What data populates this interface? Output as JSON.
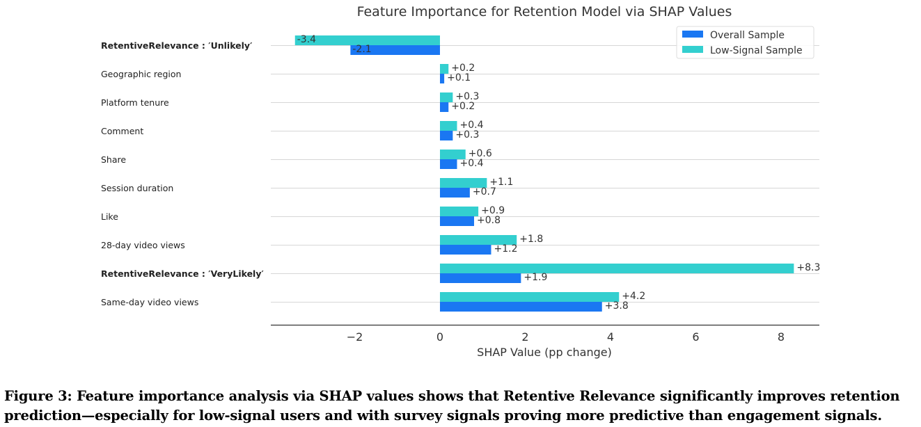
{
  "chart_data": {
    "type": "bar",
    "orientation": "horizontal",
    "title": "Feature Importance for Retention Model via SHAP Values",
    "xlabel": "SHAP Value (pp change)",
    "ylabel": "",
    "xlim": [
      -3.95,
      8.9
    ],
    "xticks": [
      -2,
      0,
      2,
      4,
      6,
      8
    ],
    "xtick_labels": [
      "−2",
      "0",
      "2",
      "4",
      "6",
      "8"
    ],
    "grid": "horizontal lines at each category",
    "legend_position": "top-right",
    "categories": [
      {
        "label": "RetentiveRelevance : ′Unlikely′",
        "bold": true
      },
      {
        "label": "Geographic region",
        "bold": false
      },
      {
        "label": "Platform tenure",
        "bold": false
      },
      {
        "label": "Comment",
        "bold": false
      },
      {
        "label": "Share",
        "bold": false
      },
      {
        "label": "Session duration",
        "bold": false
      },
      {
        "label": "Like",
        "bold": false
      },
      {
        "label": "28-day video views",
        "bold": false
      },
      {
        "label": "RetentiveRelevance : ′VeryLikely′",
        "bold": true
      },
      {
        "label": "Same-day video views",
        "bold": false
      }
    ],
    "series": [
      {
        "name": "Overall Sample",
        "color": "#1a77f2",
        "values": [
          -2.1,
          0.1,
          0.2,
          0.3,
          0.4,
          0.7,
          0.8,
          1.2,
          1.9,
          3.8
        ],
        "labels": [
          "-2.1",
          "+0.1",
          "+0.2",
          "+0.3",
          "+0.4",
          "+0.7",
          "+0.8",
          "+1.2",
          "+1.9",
          "+3.8"
        ]
      },
      {
        "name": "Low-Signal Sample",
        "color": "#33cfcf",
        "values": [
          -3.4,
          0.2,
          0.3,
          0.4,
          0.6,
          1.1,
          0.9,
          1.8,
          8.3,
          4.2
        ],
        "labels": [
          "-3.4",
          "+0.2",
          "+0.3",
          "+0.4",
          "+0.6",
          "+1.1",
          "+0.9",
          "+1.8",
          "+8.3",
          "+4.2"
        ]
      }
    ]
  },
  "caption": {
    "line1": "Figure 3: Feature importance analysis via SHAP values shows that Retentive Relevance significantly improves retention",
    "line2": "prediction—especially for low-signal users and with survey signals proving more predictive than engagement signals."
  }
}
